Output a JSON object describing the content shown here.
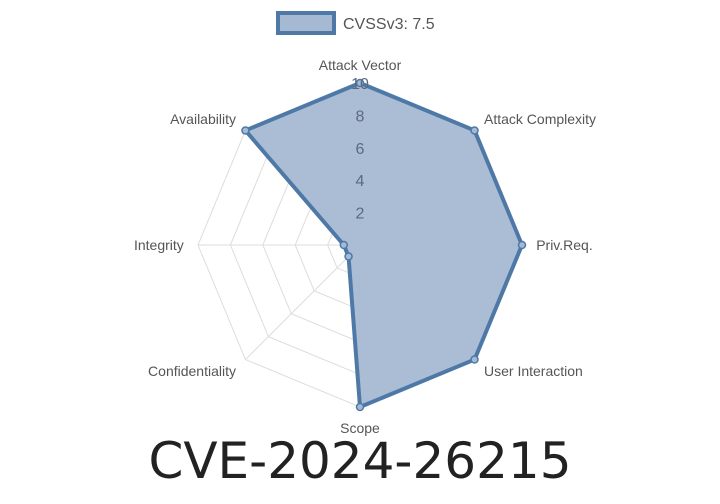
{
  "chart_data": {
    "type": "radar",
    "title": "CVE-2024-26215",
    "axes": [
      "Attack Vector",
      "Attack Complexity",
      "Priv.Req.",
      "User Interaction",
      "Scope",
      "Confidentiality",
      "Integrity",
      "Availability"
    ],
    "series": [
      {
        "name": "CVSSv3: 7.5",
        "values": [
          10,
          10,
          10,
          10,
          10,
          1,
          1,
          10
        ]
      }
    ],
    "rlim": [
      0,
      10
    ],
    "rticks": [
      "2",
      "4",
      "6",
      "8",
      "10"
    ],
    "grid": true,
    "legend": "top",
    "colors": {
      "line": "#4e79a7",
      "fill": "#a5b9d3",
      "grid": "#dddddd",
      "label": "#555555"
    }
  }
}
